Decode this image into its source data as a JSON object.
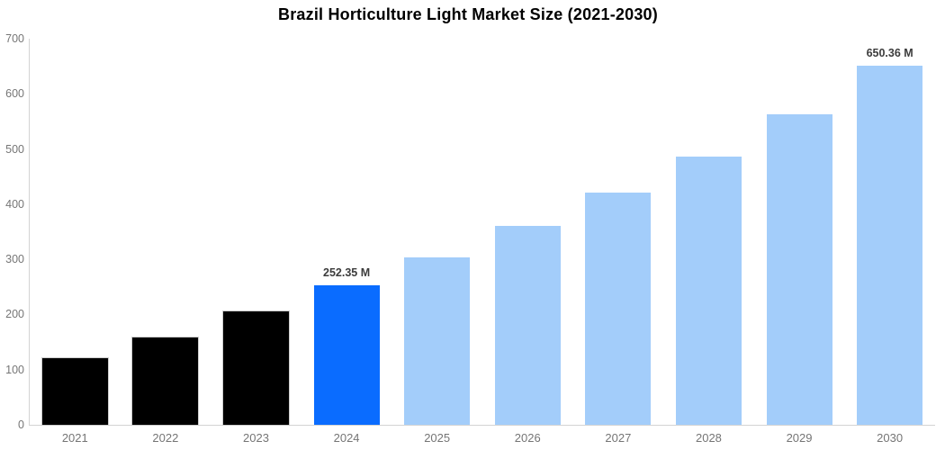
{
  "chart_data": {
    "type": "bar",
    "title": "Brazil Horticulture Light Market Size (2021-2030)",
    "categories": [
      "2021",
      "2022",
      "2023",
      "2024",
      "2025",
      "2026",
      "2027",
      "2028",
      "2029",
      "2030"
    ],
    "values": [
      120,
      158,
      205,
      252.35,
      304,
      360,
      421,
      487,
      563,
      650.36
    ],
    "value_labels": [
      "",
      "",
      "",
      "252.35 M",
      "",
      "",
      "",
      "",
      "",
      "650.36 M"
    ],
    "bar_colors": [
      "#000000",
      "#000000",
      "#000000",
      "#0a6cff",
      "#a3cdfa",
      "#a3cdfa",
      "#a3cdfa",
      "#a3cdfa",
      "#a3cdfa",
      "#a3cdfa"
    ],
    "ylim": [
      0,
      700
    ],
    "yticks": [
      0,
      100,
      200,
      300,
      400,
      500,
      600,
      700
    ],
    "xlabel": "",
    "ylabel": "",
    "grid": false,
    "legend": false,
    "colors": {
      "historical_bar": "#000000",
      "highlight_bar": "#0a6cff",
      "forecast_bar": "#a3cdfa",
      "axis_line": "#d4d4d4",
      "tick_label": "#767676",
      "value_label": "#3c3c3c",
      "title": "#000000"
    }
  }
}
